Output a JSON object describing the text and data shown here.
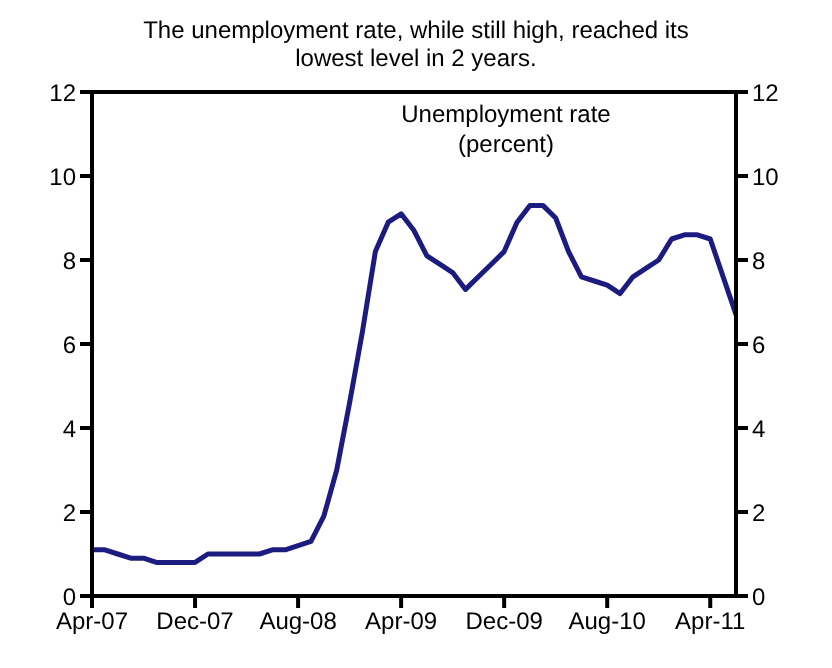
{
  "chart_data": {
    "type": "line",
    "title": "The unemployment rate, while still high, reached its lowest level in  2 years.",
    "x": [
      "2007-04",
      "2007-05",
      "2007-06",
      "2007-07",
      "2007-08",
      "2007-09",
      "2007-10",
      "2007-11",
      "2007-12",
      "2008-01",
      "2008-02",
      "2008-03",
      "2008-04",
      "2008-05",
      "2008-06",
      "2008-07",
      "2008-08",
      "2008-09",
      "2008-10",
      "2008-11",
      "2008-12",
      "2009-01",
      "2009-02",
      "2009-03",
      "2009-04",
      "2009-05",
      "2009-06",
      "2009-07",
      "2009-08",
      "2009-09",
      "2009-10",
      "2009-11",
      "2009-12",
      "2010-01",
      "2010-02",
      "2010-03",
      "2010-04",
      "2010-05",
      "2010-06",
      "2010-07",
      "2010-08",
      "2010-09",
      "2010-10",
      "2010-11",
      "2010-12",
      "2011-01",
      "2011-02",
      "2011-03",
      "2011-04",
      "2011-05",
      "2011-06"
    ],
    "series": [
      {
        "name": "Unemployment rate\n(percent)",
        "color": "#1c1c80",
        "values": [
          1.1,
          1.1,
          1.0,
          0.9,
          0.9,
          0.8,
          0.8,
          0.8,
          0.8,
          1.0,
          1.0,
          1.0,
          1.0,
          1.0,
          1.1,
          1.1,
          1.2,
          1.3,
          1.9,
          3.0,
          4.6,
          6.3,
          8.2,
          8.9,
          9.1,
          8.7,
          8.1,
          7.9,
          7.7,
          7.3,
          7.6,
          7.9,
          8.2,
          8.9,
          9.3,
          9.3,
          9.0,
          8.2,
          7.6,
          7.5,
          7.4,
          7.2,
          7.6,
          7.8,
          8.0,
          8.5,
          8.6,
          8.6,
          8.5,
          7.6,
          6.7
        ]
      }
    ],
    "xlim": [
      "2007-04",
      "2011-06"
    ],
    "xticks": [
      {
        "value": "2007-04",
        "label": "Apr-07"
      },
      {
        "value": "2007-12",
        "label": "Dec-07"
      },
      {
        "value": "2008-08",
        "label": "Aug-08"
      },
      {
        "value": "2009-04",
        "label": "Apr-09"
      },
      {
        "value": "2009-12",
        "label": "Dec-09"
      },
      {
        "value": "2010-08",
        "label": "Aug-10"
      },
      {
        "value": "2011-04",
        "label": "Apr-11"
      }
    ],
    "ylim": [
      0,
      12
    ],
    "yticks": [
      0,
      2,
      4,
      6,
      8,
      10,
      12
    ],
    "y2lim": [
      0,
      12
    ],
    "y2ticks": [
      0,
      2,
      4,
      6,
      8,
      10,
      12
    ],
    "grid": false,
    "marker": "none",
    "line_style": "solid"
  }
}
